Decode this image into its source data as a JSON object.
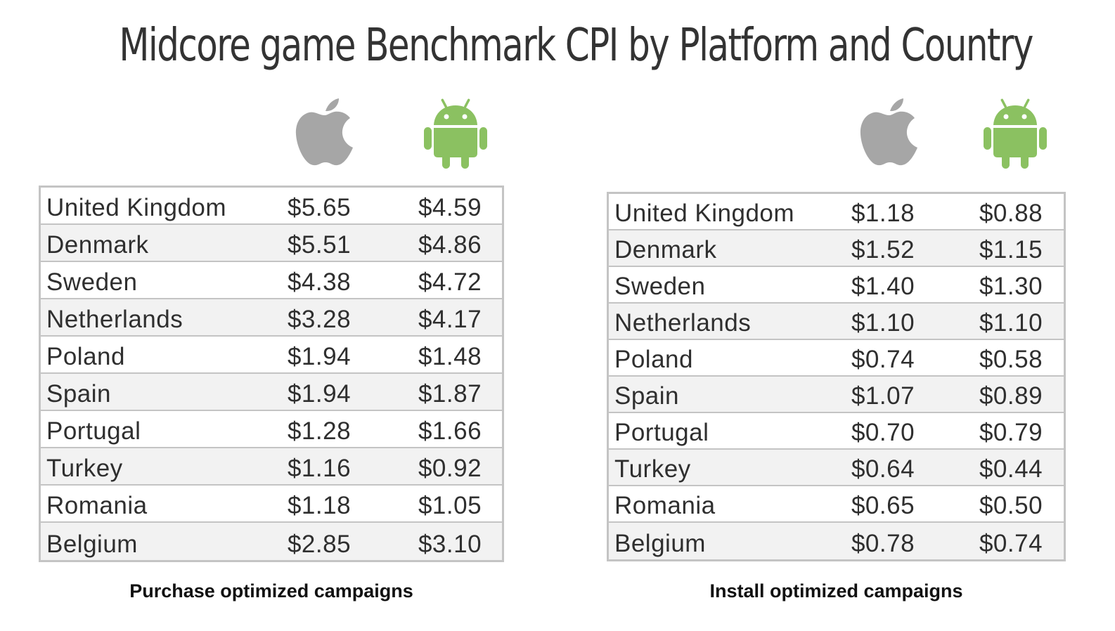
{
  "title": "Midcore game Benchmark CPI by Platform and Country",
  "icons": {
    "ios": "apple-icon",
    "android": "android-icon"
  },
  "colors": {
    "apple_gray": "#a6a6a6",
    "android_green": "#8bc161",
    "border": "#c4c4c4",
    "alt_row": "#f2f2f2"
  },
  "chart_data": [
    {
      "type": "table",
      "caption": "Purchase optimized campaigns",
      "columns": [
        "",
        "apple-icon",
        "android-icon"
      ],
      "rows": [
        {
          "country": "United Kingdom",
          "ios": "$5.65",
          "android": "$4.59"
        },
        {
          "country": "Denmark",
          "ios": "$5.51",
          "android": "$4.86"
        },
        {
          "country": "Sweden",
          "ios": "$4.38",
          "android": "$4.72"
        },
        {
          "country": "Netherlands",
          "ios": "$3.28",
          "android": "$4.17"
        },
        {
          "country": "Poland",
          "ios": "$1.94",
          "android": "$1.48"
        },
        {
          "country": "Spain",
          "ios": "$1.94",
          "android": "$1.87"
        },
        {
          "country": "Portugal",
          "ios": "$1.28",
          "android": "$1.66"
        },
        {
          "country": "Turkey",
          "ios": "$1.16",
          "android": "$0.92"
        },
        {
          "country": "Romania",
          "ios": "$1.18",
          "android": "$1.05"
        },
        {
          "country": "Belgium",
          "ios": "$2.85",
          "android": "$3.10"
        }
      ]
    },
    {
      "type": "table",
      "caption": "Install optimized campaigns",
      "columns": [
        "",
        "apple-icon",
        "android-icon"
      ],
      "rows": [
        {
          "country": "United Kingdom",
          "ios": "$1.18",
          "android": "$0.88"
        },
        {
          "country": "Denmark",
          "ios": "$1.52",
          "android": "$1.15"
        },
        {
          "country": "Sweden",
          "ios": "$1.40",
          "android": "$1.30"
        },
        {
          "country": "Netherlands",
          "ios": "$1.10",
          "android": "$1.10"
        },
        {
          "country": "Poland",
          "ios": "$0.74",
          "android": "$0.58"
        },
        {
          "country": "Spain",
          "ios": "$1.07",
          "android": "$0.89"
        },
        {
          "country": "Portugal",
          "ios": "$0.70",
          "android": "$0.79"
        },
        {
          "country": "Turkey",
          "ios": "$0.64",
          "android": "$0.44"
        },
        {
          "country": "Romania",
          "ios": "$0.65",
          "android": "$0.50"
        },
        {
          "country": "Belgium",
          "ios": "$0.78",
          "android": "$0.74"
        }
      ]
    }
  ]
}
